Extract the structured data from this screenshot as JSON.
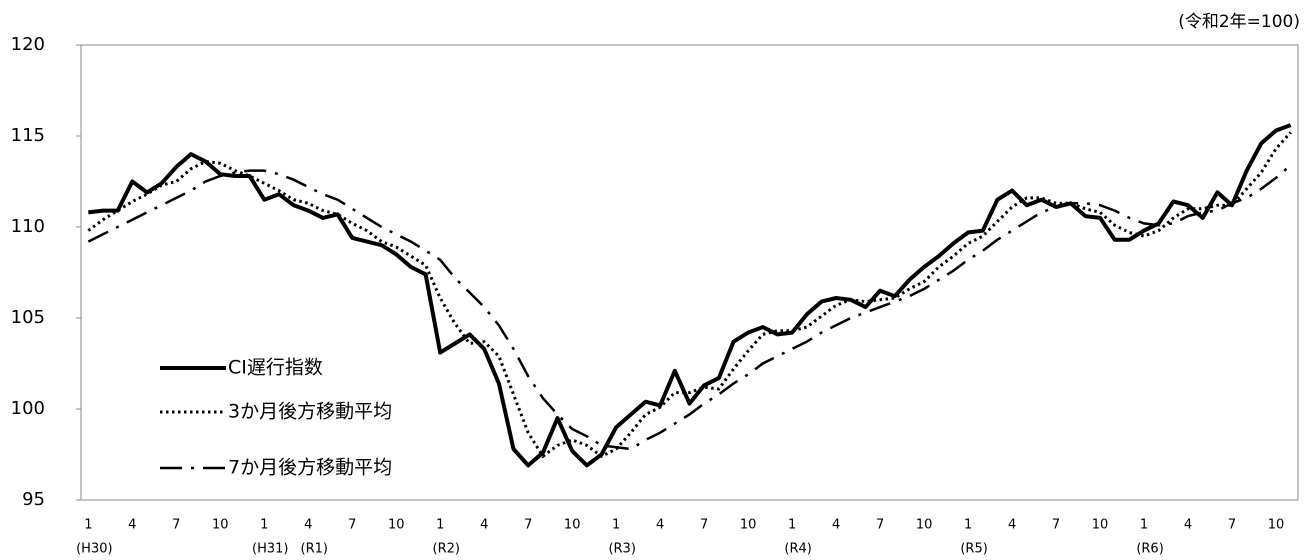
{
  "chart_data": {
    "type": "line",
    "unit": "(令和2年=100)",
    "categories": [
      "1",
      null,
      null,
      "4",
      null,
      null,
      "7",
      null,
      null,
      "10",
      null,
      null,
      "1",
      null,
      null,
      "4",
      null,
      null,
      "7",
      null,
      null,
      "10",
      null,
      null,
      "1",
      null,
      null,
      "4",
      null,
      null,
      "7",
      null,
      null,
      "10",
      null,
      null,
      "1",
      null,
      null,
      "4",
      null,
      null,
      "7",
      null,
      null,
      "10",
      null,
      null,
      "1",
      null,
      null,
      "4",
      null,
      null,
      "7",
      null,
      null,
      "10",
      null,
      null,
      "1",
      null,
      null,
      "4",
      null,
      null,
      "7",
      null,
      null,
      "10",
      null,
      null,
      "1",
      null,
      null,
      "4",
      null,
      null,
      "7",
      null,
      null,
      "10",
      null
    ],
    "category_eras": [
      "(H30)",
      null,
      null,
      null,
      null,
      null,
      null,
      null,
      null,
      null,
      null,
      null,
      "(H31)",
      null,
      null,
      "(R1)",
      null,
      null,
      null,
      null,
      null,
      null,
      null,
      null,
      "(R2)",
      null,
      null,
      null,
      null,
      null,
      null,
      null,
      null,
      null,
      null,
      null,
      "(R3)",
      null,
      null,
      null,
      null,
      null,
      null,
      null,
      null,
      null,
      null,
      null,
      "(R4)",
      null,
      null,
      null,
      null,
      null,
      null,
      null,
      null,
      null,
      null,
      null,
      "(R5)",
      null,
      null,
      null,
      null,
      null,
      null,
      null,
      null,
      null,
      null,
      null,
      "(R6)",
      null,
      null,
      null,
      null,
      null,
      null,
      null,
      null,
      null,
      null
    ],
    "ylim": [
      95,
      120
    ],
    "yticks": [
      95,
      100,
      105,
      110,
      115,
      120
    ],
    "grid": false,
    "legend": "lower-left",
    "series": [
      {
        "name": "CI遅行指数",
        "color": "#000000",
        "line_style": "solid",
        "values": [
          110.8,
          110.9,
          110.9,
          112.5,
          111.9,
          112.4,
          113.3,
          114.0,
          113.6,
          112.9,
          112.8,
          112.8,
          111.5,
          111.8,
          111.2,
          110.9,
          110.5,
          110.7,
          109.4,
          109.2,
          109.0,
          108.5,
          107.8,
          107.4,
          103.1,
          103.6,
          104.1,
          103.3,
          101.4,
          97.8,
          96.9,
          97.6,
          99.5,
          97.7,
          96.9,
          97.5,
          99.0,
          99.7,
          100.4,
          100.2,
          102.1,
          100.3,
          101.3,
          101.7,
          103.7,
          104.2,
          104.5,
          104.1,
          104.2,
          105.2,
          105.9,
          106.1,
          106.0,
          105.6,
          106.5,
          106.2,
          107.1,
          107.8,
          108.4,
          109.1,
          109.7,
          109.8,
          111.5,
          112.0,
          111.2,
          111.5,
          111.1,
          111.3,
          110.6,
          110.5,
          109.3,
          109.3,
          109.8,
          110.2,
          111.4,
          111.2,
          110.5,
          111.9,
          111.2,
          113.1,
          114.6,
          115.3,
          115.6
        ]
      },
      {
        "name": "3か月後方移動平均",
        "color": "#000000",
        "line_style": "dotted",
        "values": [
          109.8,
          110.4,
          110.9,
          111.4,
          111.8,
          112.3,
          112.5,
          113.2,
          113.6,
          113.5,
          113.1,
          112.8,
          112.4,
          112.0,
          111.5,
          111.3,
          110.9,
          110.7,
          110.2,
          109.8,
          109.2,
          108.9,
          108.4,
          107.9,
          106.1,
          104.7,
          103.6,
          103.7,
          102.9,
          100.8,
          98.7,
          97.4,
          98.0,
          98.3,
          98.0,
          97.4,
          97.8,
          98.7,
          99.7,
          100.1,
          100.9,
          100.9,
          101.2,
          101.1,
          102.2,
          103.2,
          104.1,
          104.3,
          104.3,
          104.5,
          105.1,
          105.7,
          106.0,
          105.9,
          106.0,
          106.1,
          106.6,
          107.0,
          107.8,
          108.4,
          109.1,
          109.5,
          110.3,
          111.1,
          111.6,
          111.6,
          111.3,
          111.3,
          111.0,
          110.8,
          110.1,
          109.7,
          109.5,
          109.8,
          110.5,
          111.0,
          111.0,
          111.2,
          111.2,
          112.1,
          113.0,
          114.3,
          115.2
        ]
      },
      {
        "name": "7か月後方移動平均",
        "color": "#000000",
        "line_style": "dashdot",
        "values": [
          109.2,
          109.6,
          110.0,
          110.4,
          110.8,
          111.2,
          111.6,
          112.0,
          112.5,
          112.8,
          113.0,
          113.1,
          113.1,
          112.9,
          112.6,
          112.2,
          111.8,
          111.5,
          111.0,
          110.5,
          110.0,
          109.6,
          109.2,
          108.7,
          108.2,
          107.2,
          106.4,
          105.6,
          104.6,
          103.3,
          101.8,
          100.6,
          99.7,
          98.9,
          98.5,
          98.0,
          97.9,
          97.8,
          98.3,
          98.7,
          99.2,
          99.7,
          100.3,
          100.8,
          101.4,
          101.9,
          102.5,
          102.9,
          103.3,
          103.7,
          104.2,
          104.6,
          105.0,
          105.3,
          105.6,
          105.9,
          106.2,
          106.6,
          107.1,
          107.6,
          108.2,
          108.7,
          109.3,
          109.8,
          110.3,
          110.8,
          111.1,
          111.3,
          111.3,
          111.2,
          110.9,
          110.5,
          110.2,
          110.1,
          110.2,
          110.6,
          110.8,
          110.9,
          111.3,
          111.6,
          112.1,
          112.7,
          113.4
        ]
      }
    ]
  }
}
